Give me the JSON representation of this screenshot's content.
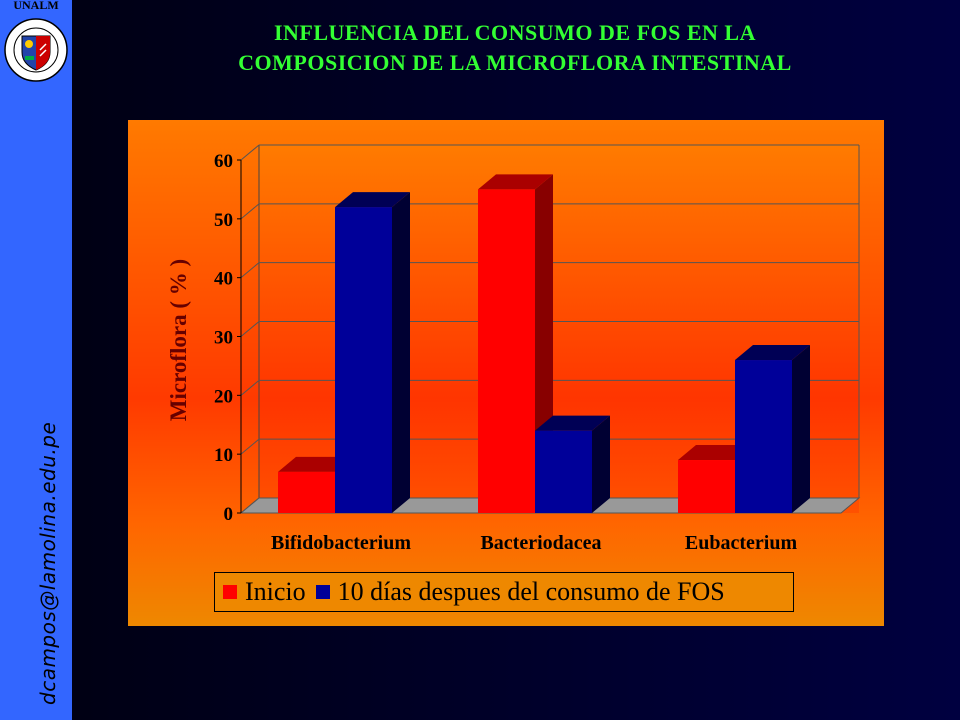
{
  "header": {
    "title_line1": "INFLUENCIA DEL CONSUMO DE FOS EN LA",
    "title_line2": "COMPOSICION DE LA MICROFLORA INTESTINAL"
  },
  "sidebar": {
    "logo_label": "UNALM",
    "email": "dcampos@lamolina.edu.pe"
  },
  "colors": {
    "sidebar": "#3366ff",
    "title": "#33ff33",
    "series_inicio": "#ff0000",
    "series_fos": "#000099"
  },
  "chart_data": {
    "type": "bar",
    "title": "",
    "ylabel": "Microflora ( % )",
    "xlabel": "",
    "ylim": [
      0,
      60
    ],
    "yticks": [
      "0",
      "10",
      "20",
      "30",
      "40",
      "50",
      "60"
    ],
    "categories": [
      "Bifidobacterium",
      "Bacteriodacea",
      "Eubacterium"
    ],
    "series": [
      {
        "name": "Inicio",
        "values": [
          7,
          55,
          9
        ]
      },
      {
        "name": "10 días despues del consumo de FOS",
        "values": [
          52,
          14,
          26
        ]
      }
    ],
    "legend_position": "bottom",
    "grid": true,
    "style": "3d-bar"
  }
}
